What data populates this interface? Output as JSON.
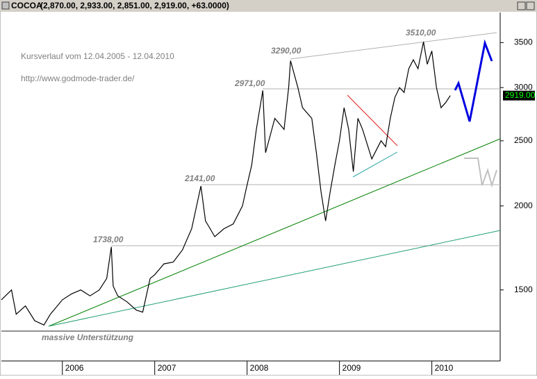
{
  "chart_data": {
    "type": "line",
    "title": "COCOA",
    "subtitle": "(2,870.00, 2,933.00, 2,851.00, 2,919.00, +63.0000)",
    "x": [
      2005.34,
      2005.45,
      2005.5,
      2005.6,
      2005.7,
      2005.8,
      2005.87,
      2006.0,
      2006.1,
      2006.2,
      2006.3,
      2006.4,
      2006.48,
      2006.53,
      2006.55,
      2006.6,
      2006.7,
      2006.8,
      2006.87,
      2006.95,
      2007.0,
      2007.1,
      2007.2,
      2007.3,
      2007.4,
      2007.5,
      2007.55,
      2007.6,
      2007.65,
      2007.75,
      2007.85,
      2007.95,
      2008.0,
      2008.05,
      2008.1,
      2008.17,
      2008.2,
      2008.3,
      2008.4,
      2008.45,
      2008.47,
      2008.55,
      2008.6,
      2008.7,
      2008.75,
      2008.8,
      2008.85,
      2008.9,
      2008.95,
      2009.0,
      2009.05,
      2009.1,
      2009.15,
      2009.2,
      2009.25,
      2009.35,
      2009.45,
      2009.5,
      2009.55,
      2009.6,
      2009.65,
      2009.7,
      2009.75,
      2009.8,
      2009.85,
      2009.91,
      2009.95,
      2010.0,
      2010.05,
      2010.1,
      2010.15,
      2010.2
    ],
    "series": [
      {
        "name": "COCOA",
        "color": "#000000",
        "values": [
          1450,
          1500,
          1380,
          1420,
          1350,
          1330,
          1380,
          1450,
          1480,
          1500,
          1470,
          1500,
          1560,
          1738,
          1520,
          1470,
          1440,
          1400,
          1390,
          1560,
          1580,
          1640,
          1650,
          1720,
          1850,
          2141,
          1900,
          1850,
          1800,
          1850,
          1880,
          2000,
          2150,
          2300,
          2600,
          2971,
          2400,
          2700,
          2600,
          3000,
          3290,
          3000,
          2800,
          2700,
          2400,
          2100,
          1900,
          2100,
          2300,
          2500,
          2800,
          2600,
          2250,
          2700,
          2600,
          2350,
          2500,
          2450,
          2700,
          2900,
          3000,
          2950,
          3200,
          3300,
          3200,
          3510,
          3250,
          3400,
          3000,
          2800,
          2850,
          2919
        ]
      }
    ],
    "xlim": [
      2005.34,
      2010.74
    ],
    "xticks": [
      2006,
      2007,
      2008,
      2009,
      2010
    ],
    "ylim": [
      1176,
      3880
    ],
    "yticks": [
      1500,
      2000,
      2500,
      3000,
      3500
    ],
    "log_scale_y": true,
    "last_price_label": "2919.00",
    "annotations": [
      "Kursverlauf vom 12.04.2005 - 12.04.2010",
      "http://www.godmode-trader.de/",
      "massive Unterstützung",
      "1738,00",
      "2141,00",
      "2971,00",
      "3290,00",
      "3510,00"
    ]
  }
}
